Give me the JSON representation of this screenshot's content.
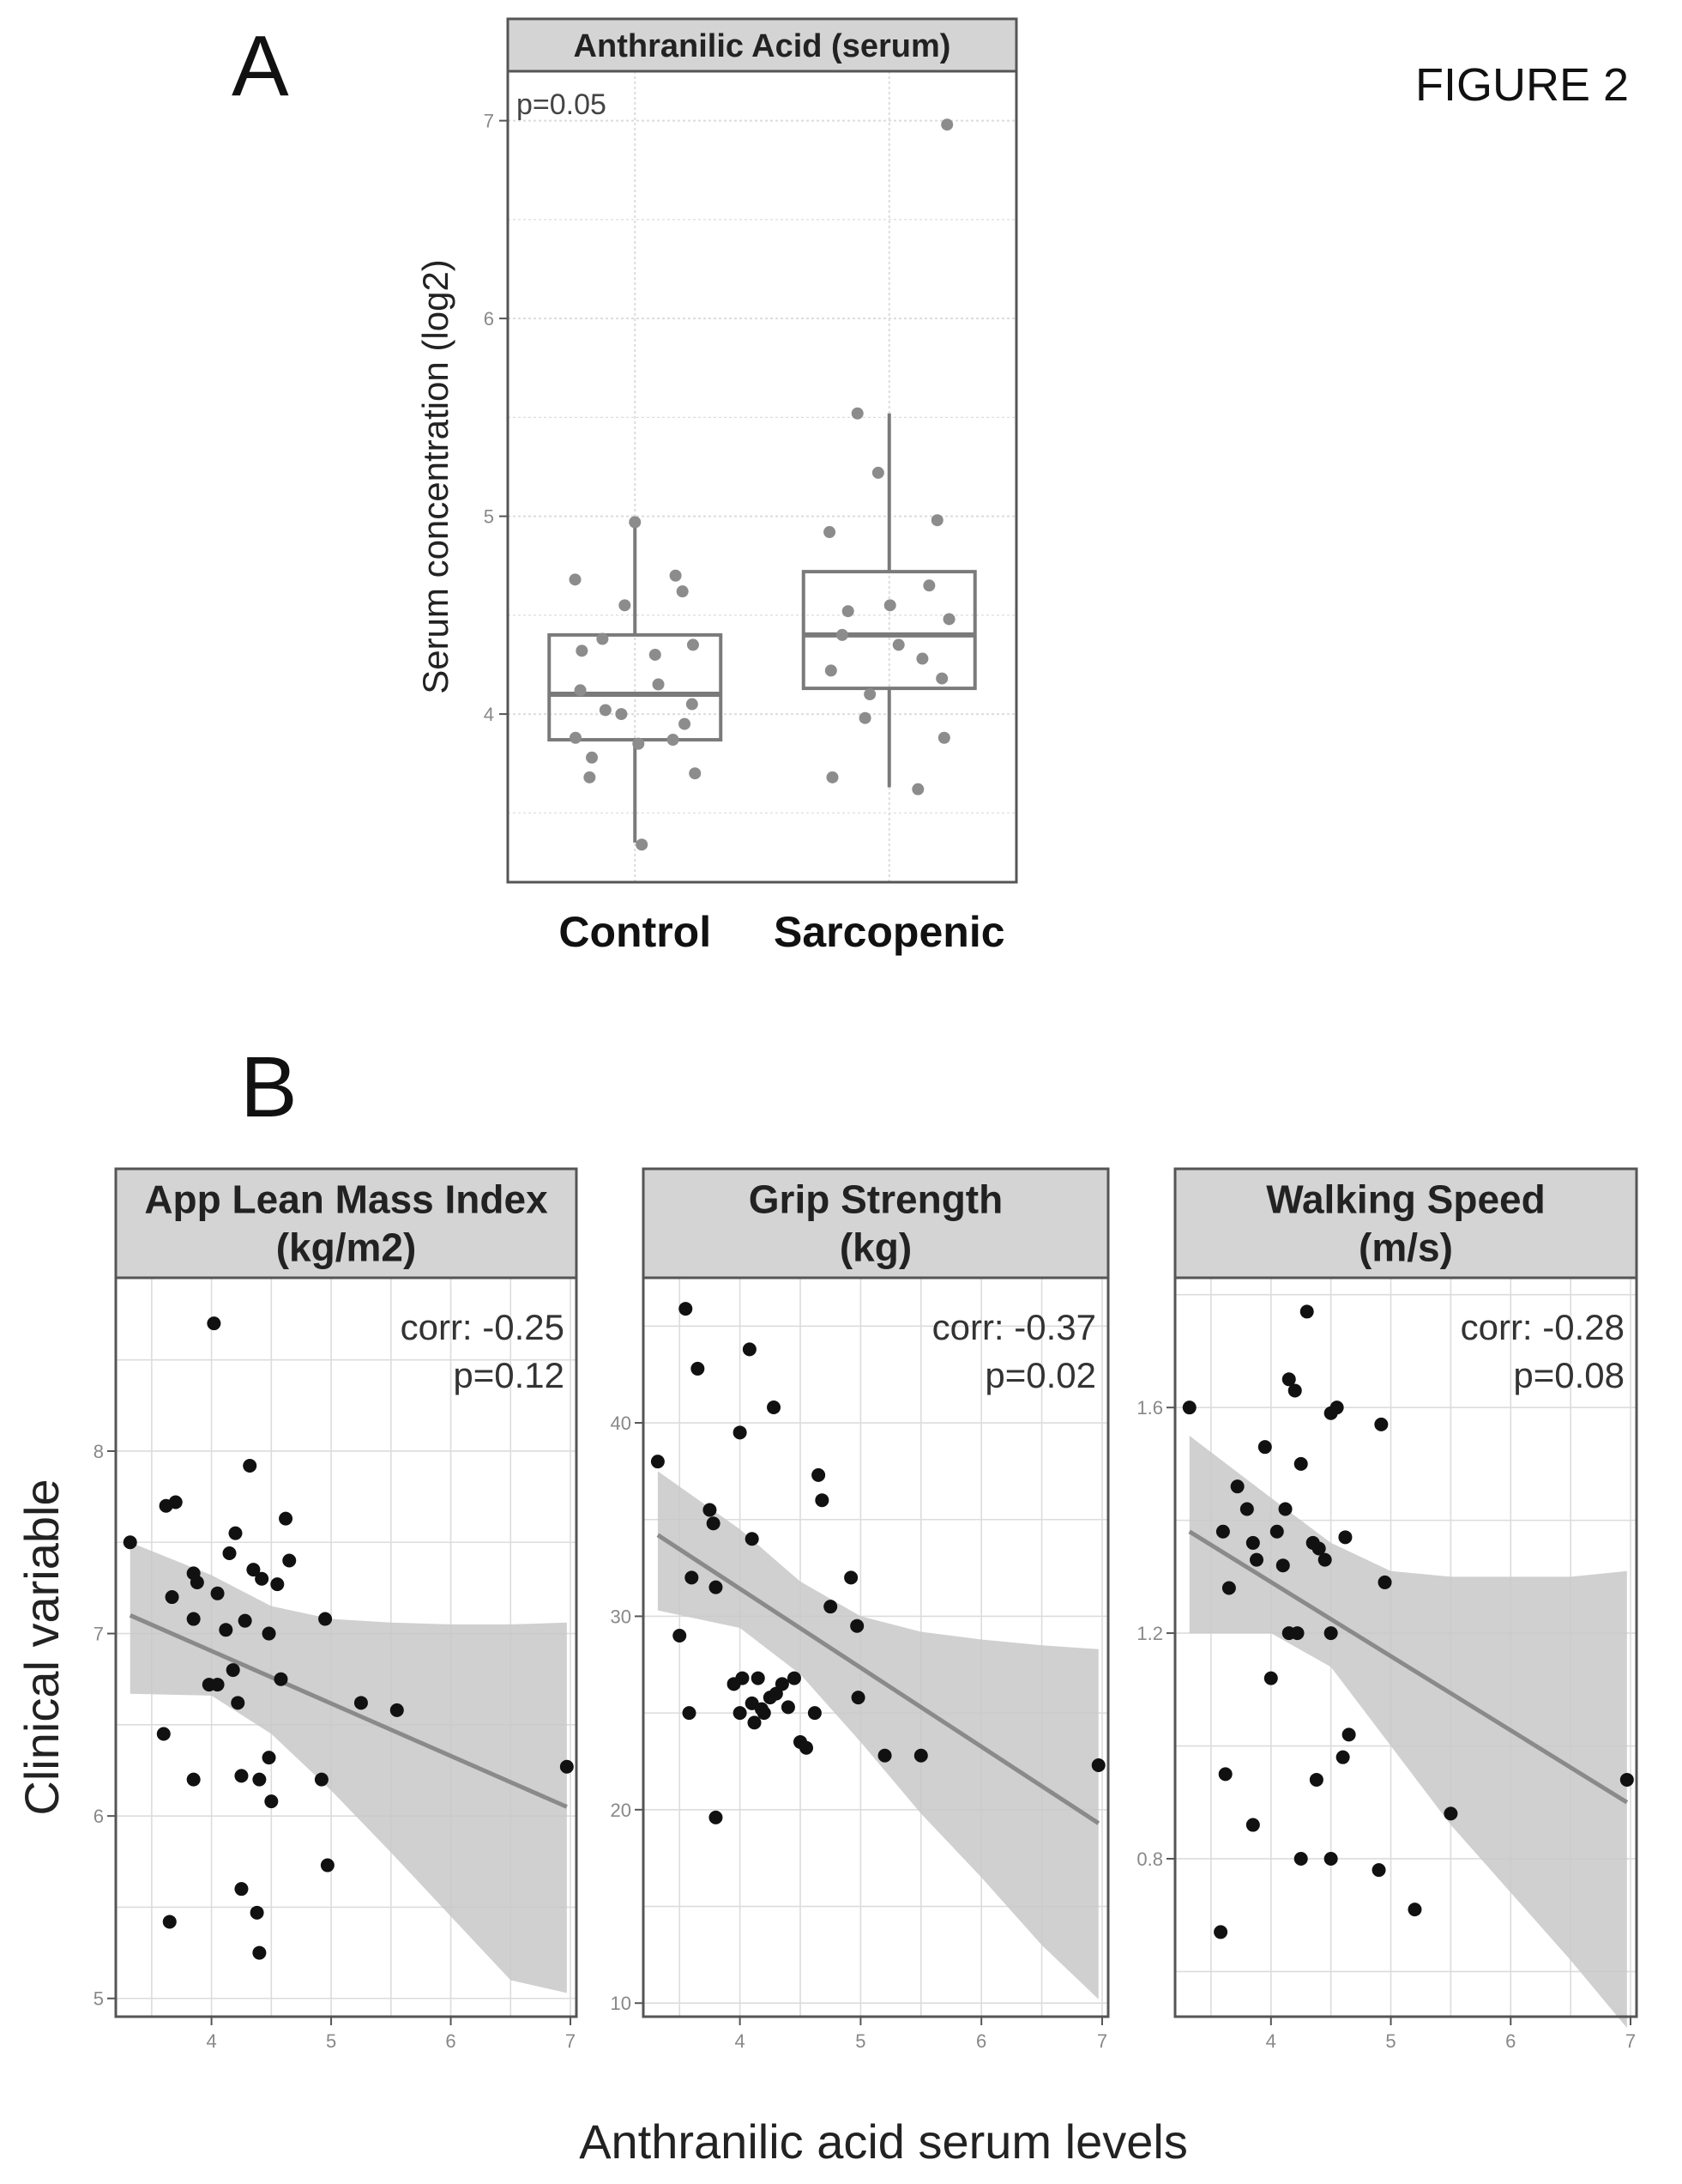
{
  "figure_title": "FIGURE 2",
  "panel_a_letter": "A",
  "panel_b_letter": "B",
  "colors": {
    "frame": "#555555",
    "strip_fill": "#d4d4d4",
    "grid": "#dcdcdc",
    "point_a": "#8c8c8c",
    "point_b": "#111111",
    "box": "#7a7a7a",
    "ribbon": "#c8c8c8",
    "fit_line": "#8a8a8a"
  },
  "chart_data": [
    {
      "id": "panel-a",
      "type": "box",
      "facet_title": "Anthranilic Acid (serum)",
      "annotation": "p=0.05",
      "ylabel": "Serum concentration (log2)",
      "xlabel": "",
      "categories": [
        "Control",
        "Sarcopenic"
      ],
      "ylim": [
        3.15,
        7.25
      ],
      "yticks": [
        4,
        5,
        6,
        7
      ],
      "grid": true,
      "boxes": [
        {
          "category": "Control",
          "whisker_low": 3.35,
          "q1": 3.87,
          "median": 4.1,
          "q3": 4.4,
          "whisker_high": 4.97
        },
        {
          "category": "Sarcopenic",
          "whisker_low": 3.63,
          "q1": 4.13,
          "median": 4.4,
          "q3": 4.72,
          "whisker_high": 5.52
        }
      ],
      "points": [
        {
          "category": "Control",
          "values": [
            4.97,
            4.7,
            4.68,
            4.62,
            4.55,
            4.38,
            4.35,
            4.32,
            4.3,
            4.15,
            4.12,
            4.05,
            4.02,
            4.0,
            3.95,
            3.88,
            3.87,
            3.85,
            3.78,
            3.7,
            3.68,
            3.34
          ]
        },
        {
          "category": "Sarcopenic",
          "values": [
            6.98,
            5.52,
            5.22,
            4.98,
            4.92,
            4.65,
            4.55,
            4.52,
            4.48,
            4.4,
            4.35,
            4.28,
            4.22,
            4.18,
            4.1,
            3.98,
            3.88,
            3.68,
            3.62
          ]
        }
      ]
    },
    {
      "id": "panel-b1",
      "type": "scatter",
      "facet_title": [
        "App Lean Mass Index",
        "(kg/m2)"
      ],
      "corr_label": "corr: -0.25",
      "p_label": "p=0.12",
      "ylabel": "Clinical variable",
      "xlabel": "Anthranilic acid serum levels",
      "xlim": [
        3.2,
        7.05
      ],
      "ylim": [
        4.9,
        8.95
      ],
      "xticks": [
        4,
        5,
        6,
        7
      ],
      "yticks": [
        5,
        6,
        7,
        8
      ],
      "grid": true,
      "points": [
        [
          3.32,
          7.5
        ],
        [
          3.62,
          7.7
        ],
        [
          3.7,
          7.72
        ],
        [
          3.67,
          7.2
        ],
        [
          3.85,
          7.33
        ],
        [
          3.88,
          7.28
        ],
        [
          3.85,
          7.08
        ],
        [
          3.6,
          6.45
        ],
        [
          3.65,
          5.42
        ],
        [
          3.85,
          6.2
        ],
        [
          4.02,
          8.7
        ],
        [
          4.05,
          7.22
        ],
        [
          4.12,
          7.02
        ],
        [
          4.15,
          7.44
        ],
        [
          4.2,
          7.55
        ],
        [
          3.98,
          6.72
        ],
        [
          4.05,
          6.72
        ],
        [
          4.18,
          6.8
        ],
        [
          4.22,
          6.62
        ],
        [
          4.28,
          7.07
        ],
        [
          4.32,
          7.92
        ],
        [
          4.35,
          7.35
        ],
        [
          4.42,
          7.3
        ],
        [
          4.48,
          7.0
        ],
        [
          4.55,
          7.27
        ],
        [
          4.62,
          7.63
        ],
        [
          4.65,
          7.4
        ],
        [
          4.58,
          6.75
        ],
        [
          4.25,
          6.22
        ],
        [
          4.4,
          6.2
        ],
        [
          4.48,
          6.32
        ],
        [
          4.5,
          6.08
        ],
        [
          4.25,
          5.6
        ],
        [
          4.38,
          5.47
        ],
        [
          4.4,
          5.25
        ],
        [
          4.95,
          7.08
        ],
        [
          4.92,
          6.2
        ],
        [
          4.97,
          5.73
        ],
        [
          5.25,
          6.62
        ],
        [
          5.55,
          6.58
        ],
        [
          6.97,
          6.27
        ]
      ],
      "fit": {
        "x": [
          3.32,
          6.97
        ],
        "y": [
          7.1,
          6.05
        ]
      },
      "ribbon": {
        "x": [
          3.32,
          4.0,
          4.5,
          5.0,
          5.5,
          6.0,
          6.5,
          6.97
        ],
        "upper": [
          7.5,
          7.32,
          7.15,
          7.08,
          7.06,
          7.05,
          7.05,
          7.06
        ],
        "lower": [
          6.67,
          6.66,
          6.45,
          6.14,
          5.8,
          5.45,
          5.1,
          5.03
        ]
      }
    },
    {
      "id": "panel-b2",
      "type": "scatter",
      "facet_title": [
        "Grip Strength",
        "(kg)"
      ],
      "corr_label": "corr: -0.37",
      "p_label": "p=0.02",
      "ylabel": "",
      "xlabel": "",
      "xlim": [
        3.2,
        7.05
      ],
      "ylim": [
        9.3,
        47.5
      ],
      "xticks": [
        4,
        5,
        6,
        7
      ],
      "yticks": [
        10,
        20,
        30,
        40
      ],
      "grid": true,
      "points": [
        [
          3.32,
          38.0
        ],
        [
          3.55,
          45.9
        ],
        [
          3.65,
          42.8
        ],
        [
          3.75,
          35.5
        ],
        [
          3.78,
          34.8
        ],
        [
          3.6,
          32.0
        ],
        [
          3.8,
          31.5
        ],
        [
          3.5,
          29.0
        ],
        [
          3.58,
          25.0
        ],
        [
          3.8,
          19.6
        ],
        [
          4.0,
          39.5
        ],
        [
          4.08,
          43.8
        ],
        [
          4.28,
          40.8
        ],
        [
          4.1,
          34.0
        ],
        [
          3.95,
          26.5
        ],
        [
          4.02,
          26.8
        ],
        [
          4.1,
          25.5
        ],
        [
          4.15,
          26.8
        ],
        [
          4.2,
          25.0
        ],
        [
          4.25,
          25.8
        ],
        [
          4.3,
          26.0
        ],
        [
          4.35,
          26.5
        ],
        [
          4.4,
          25.3
        ],
        [
          4.45,
          26.8
        ],
        [
          4.12,
          24.5
        ],
        [
          4.18,
          25.2
        ],
        [
          4.0,
          25.0
        ],
        [
          4.5,
          23.5
        ],
        [
          4.55,
          23.2
        ],
        [
          4.62,
          25.0
        ],
        [
          4.65,
          37.3
        ],
        [
          4.68,
          36.0
        ],
        [
          4.75,
          30.5
        ],
        [
          4.92,
          32.0
        ],
        [
          4.97,
          29.5
        ],
        [
          4.98,
          25.8
        ],
        [
          5.2,
          22.8
        ],
        [
          5.5,
          22.8
        ],
        [
          6.97,
          22.3
        ]
      ],
      "fit": {
        "x": [
          3.32,
          6.97
        ],
        "y": [
          34.2,
          19.3
        ]
      },
      "ribbon": {
        "x": [
          3.32,
          4.0,
          4.5,
          5.0,
          5.5,
          6.0,
          6.5,
          6.97
        ],
        "upper": [
          37.5,
          34.5,
          31.8,
          30.0,
          29.2,
          28.8,
          28.5,
          28.3
        ],
        "lower": [
          30.3,
          29.4,
          27.0,
          23.5,
          19.8,
          16.5,
          13.0,
          10.2
        ]
      }
    },
    {
      "id": "panel-b3",
      "type": "scatter",
      "facet_title": [
        "Walking Speed",
        "(m/s)"
      ],
      "corr_label": "corr: -0.28",
      "p_label": "p=0.08",
      "ylabel": "",
      "xlabel": "",
      "xlim": [
        3.2,
        7.05
      ],
      "ylim": [
        0.52,
        1.83
      ],
      "xticks": [
        4,
        5,
        6,
        7
      ],
      "yticks": [
        0.8,
        1.2,
        1.6
      ],
      "grid": true,
      "points": [
        [
          3.32,
          1.6
        ],
        [
          3.6,
          1.38
        ],
        [
          3.65,
          1.28
        ],
        [
          3.72,
          1.46
        ],
        [
          3.8,
          1.42
        ],
        [
          3.85,
          1.36
        ],
        [
          3.88,
          1.33
        ],
        [
          3.62,
          0.95
        ],
        [
          3.58,
          0.67
        ],
        [
          3.85,
          0.86
        ],
        [
          3.95,
          1.53
        ],
        [
          4.0,
          1.12
        ],
        [
          4.05,
          1.38
        ],
        [
          4.1,
          1.32
        ],
        [
          4.12,
          1.42
        ],
        [
          4.15,
          1.65
        ],
        [
          4.2,
          1.63
        ],
        [
          4.25,
          1.5
        ],
        [
          4.3,
          1.77
        ],
        [
          4.35,
          1.36
        ],
        [
          4.4,
          1.35
        ],
        [
          4.45,
          1.33
        ],
        [
          4.15,
          1.2
        ],
        [
          4.22,
          1.2
        ],
        [
          4.5,
          1.59
        ],
        [
          4.55,
          1.6
        ],
        [
          4.62,
          1.37
        ],
        [
          4.5,
          1.2
        ],
        [
          4.38,
          0.94
        ],
        [
          4.25,
          0.8
        ],
        [
          4.5,
          0.8
        ],
        [
          4.6,
          0.98
        ],
        [
          4.65,
          1.02
        ],
        [
          4.92,
          1.57
        ],
        [
          4.95,
          1.29
        ],
        [
          4.9,
          0.78
        ],
        [
          5.2,
          0.71
        ],
        [
          5.5,
          0.88
        ],
        [
          6.97,
          0.94
        ]
      ],
      "fit": {
        "x": [
          3.32,
          6.97
        ],
        "y": [
          1.38,
          0.9
        ]
      },
      "ribbon": {
        "x": [
          3.32,
          4.0,
          4.5,
          5.0,
          5.5,
          6.0,
          6.5,
          6.97
        ],
        "upper": [
          1.55,
          1.44,
          1.36,
          1.31,
          1.3,
          1.3,
          1.3,
          1.31
        ],
        "lower": [
          1.2,
          1.2,
          1.14,
          1.0,
          0.86,
          0.74,
          0.62,
          0.5
        ]
      }
    }
  ]
}
